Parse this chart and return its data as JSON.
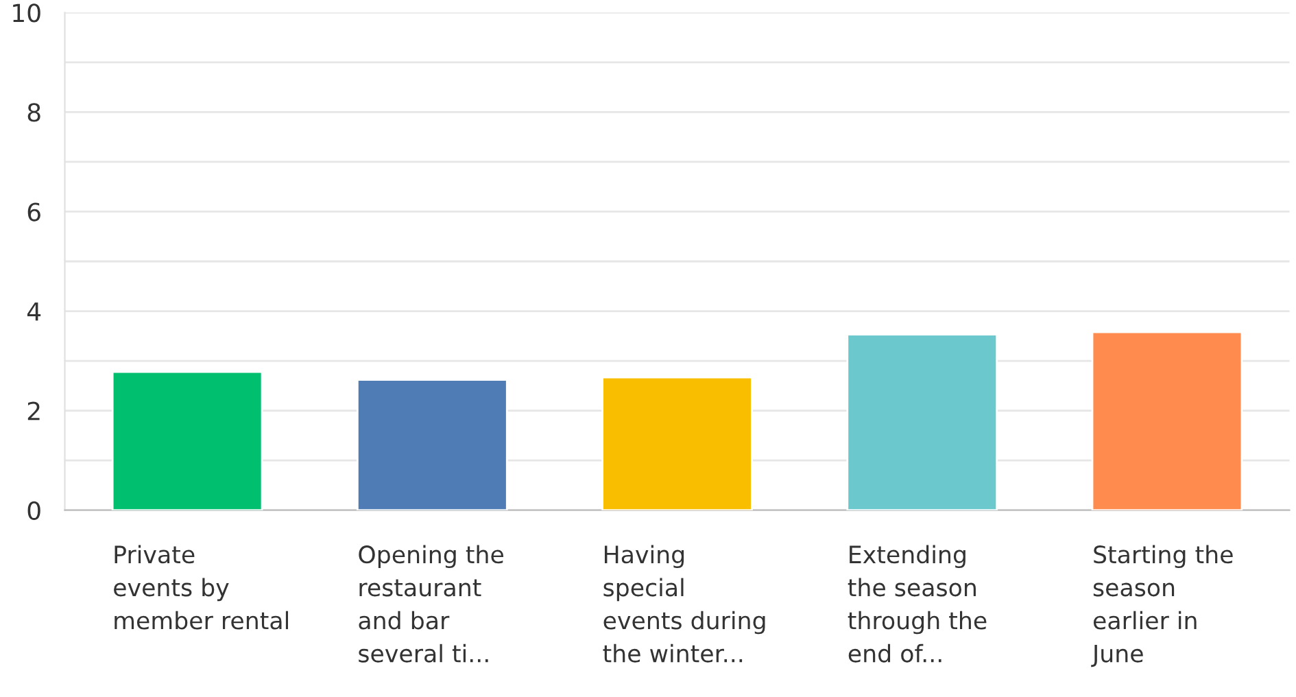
{
  "chart_data": {
    "type": "bar",
    "categories": [
      "Private\nevents by\nmember rental",
      "Opening the\nrestaurant\nand bar\nseveral ti...",
      "Having\nspecial\nevents during\nthe winter...",
      "Extending\nthe season\nthrough the\nend of...",
      "Starting the\nseason\nearlier in\nJune"
    ],
    "values": [
      2.78,
      2.62,
      2.67,
      3.53,
      3.58
    ],
    "colors": [
      "#00bf6f",
      "#507cb6",
      "#f9be00",
      "#6bc8cd",
      "#ff8b4f"
    ],
    "ylim": [
      0,
      10
    ],
    "yticks": [
      0,
      {
        "value": 1,
        "label": null
      },
      2,
      {
        "value": 3,
        "label": null
      },
      4,
      {
        "value": 5,
        "label": null
      },
      6,
      {
        "value": 7,
        "label": null
      },
      8,
      {
        "value": 9,
        "label": null
      },
      10
    ],
    "grid": "y",
    "legend": false
  }
}
